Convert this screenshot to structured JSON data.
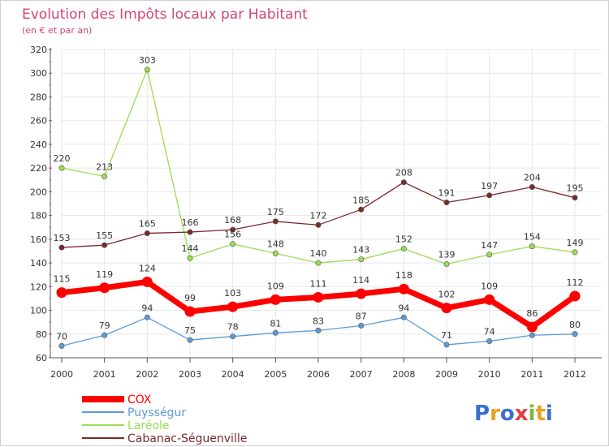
{
  "chart_data": {
    "type": "line",
    "title": "Evolution des Impôts locaux par Habitant",
    "subtitle": "(en € et par an)",
    "xlabel": "",
    "ylabel": "",
    "categories": [
      "2000",
      "2001",
      "2002",
      "2003",
      "2004",
      "2005",
      "2006",
      "2007",
      "2008",
      "2009",
      "2010",
      "2011",
      "2012"
    ],
    "ylim": [
      60,
      320
    ],
    "yticks": [
      60,
      80,
      100,
      120,
      140,
      160,
      180,
      200,
      220,
      240,
      260,
      280,
      300,
      320
    ],
    "grid": true,
    "legend_position": "bottom-left",
    "series": [
      {
        "name": "COX",
        "color": "#ff0000",
        "values": [
          115,
          119,
          124,
          99,
          103,
          109,
          111,
          114,
          118,
          102,
          109,
          86,
          112
        ]
      },
      {
        "name": "Puysségur",
        "color": "#5b9bd5",
        "values": [
          70,
          79,
          94,
          75,
          78,
          81,
          83,
          87,
          94,
          71,
          74,
          79,
          80
        ],
        "labels": [
          "70",
          "79",
          "94",
          "75",
          "78",
          "81",
          "83",
          "87",
          "94",
          "71",
          "74",
          "",
          "80"
        ]
      },
      {
        "name": "Laréole",
        "color": "#99dd55",
        "values": [
          220,
          213,
          303,
          144,
          156,
          148,
          140,
          143,
          152,
          139,
          147,
          154,
          149
        ]
      },
      {
        "name": "Cabanac-Séguenville",
        "color": "#7a2a2a",
        "values": [
          153,
          155,
          165,
          166,
          168,
          175,
          172,
          185,
          208,
          191,
          197,
          204,
          195
        ]
      }
    ]
  },
  "logo": {
    "text": "Proxiti"
  }
}
